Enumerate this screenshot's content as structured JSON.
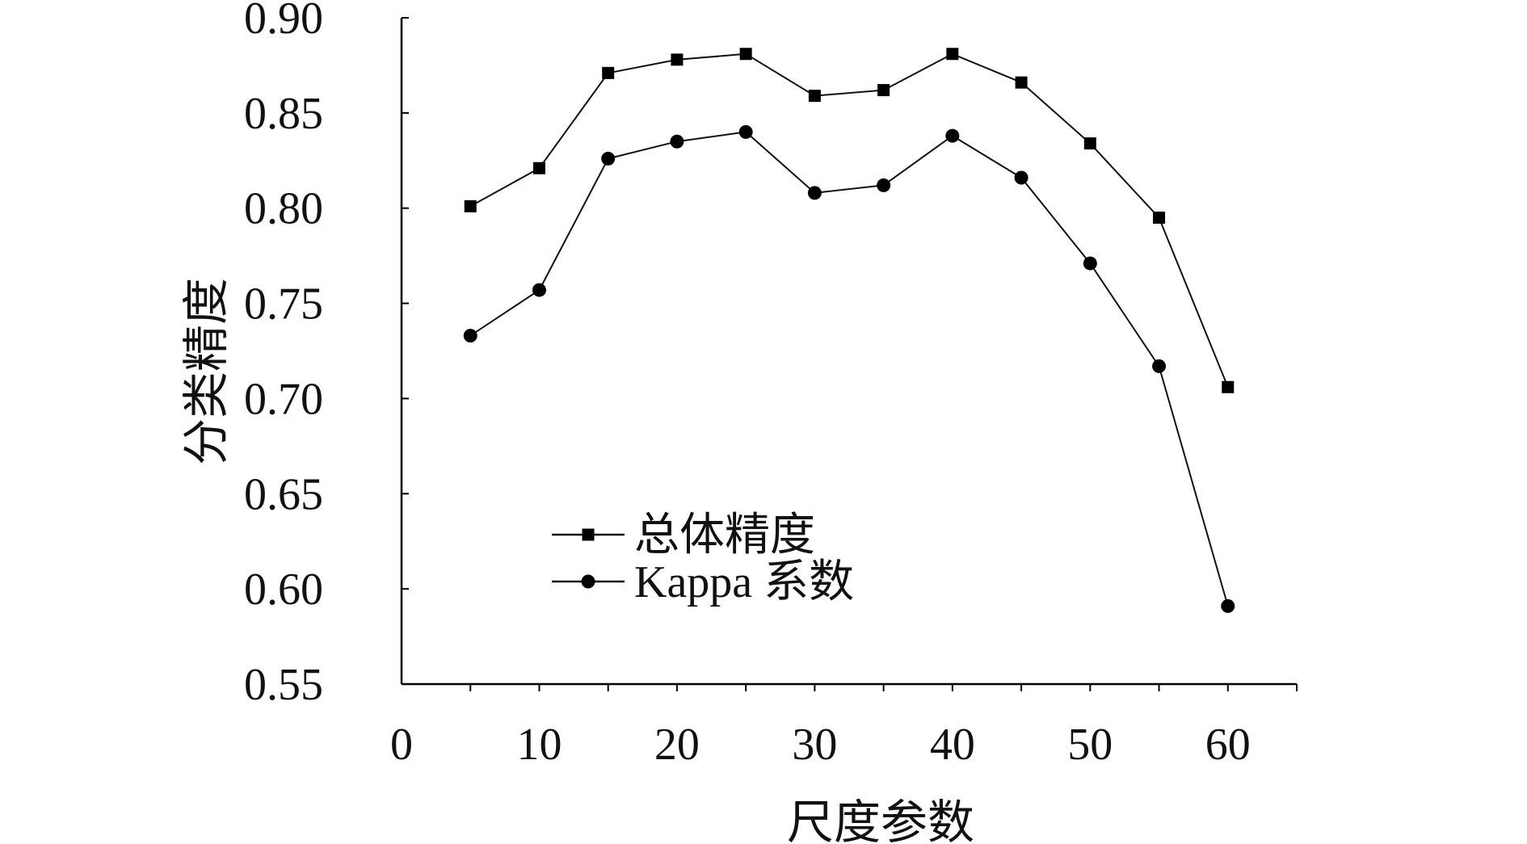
{
  "chart_data": {
    "type": "line",
    "xlabel": "尺度参数",
    "ylabel": "分类精度",
    "xlim": [
      0,
      65
    ],
    "ylim": [
      0.55,
      0.9
    ],
    "x_ticks": [
      "0",
      "10",
      "20",
      "30",
      "40",
      "50",
      "60"
    ],
    "y_ticks": [
      "0.55",
      "0.60",
      "0.65",
      "0.70",
      "0.75",
      "0.80",
      "0.85",
      "0.90"
    ],
    "x": [
      5,
      10,
      15,
      20,
      25,
      30,
      35,
      40,
      45,
      50,
      55,
      60
    ],
    "series": [
      {
        "name": "总体精度",
        "marker": "square",
        "values": [
          0.801,
          0.821,
          0.871,
          0.878,
          0.881,
          0.859,
          0.862,
          0.881,
          0.866,
          0.834,
          0.795,
          0.706
        ]
      },
      {
        "name": "Kappa 系数",
        "marker": "circle",
        "values": [
          0.733,
          0.757,
          0.826,
          0.835,
          0.84,
          0.808,
          0.812,
          0.838,
          0.816,
          0.771,
          0.717,
          0.591
        ]
      }
    ],
    "grid": false,
    "legend_position": "lower-left (inside plot)",
    "colors": {
      "line": "#111111",
      "marker": "#000000",
      "axis": "#000000",
      "background": "#ffffff"
    }
  }
}
